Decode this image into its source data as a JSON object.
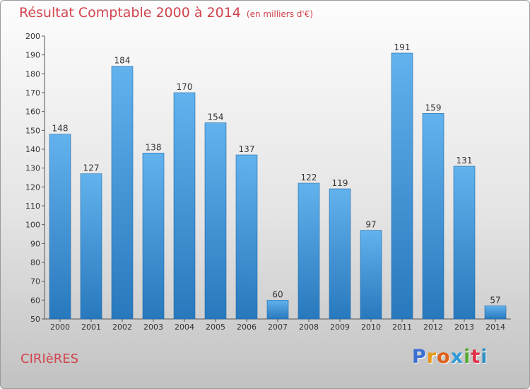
{
  "header": {
    "title": "Résultat Comptable 2000 à 2014",
    "subtitle": "(en milliers d'€)"
  },
  "footer": {
    "commune": "CIRIèRES",
    "logo_letters": [
      "P",
      "r",
      "o",
      "x",
      "i",
      "t",
      "i"
    ],
    "logo_colors": [
      "#3b6fd1",
      "#e89a1c",
      "#e0601a",
      "#2f9ad8",
      "#57a832",
      "#e0334a",
      "#2f8fc4"
    ]
  },
  "colors": {
    "bar_light": "#62b2ee",
    "bar_dark": "#2878bd",
    "title": "#d2444e"
  },
  "chart_data": {
    "type": "bar",
    "title": "Résultat Comptable 2000 à 2014",
    "xlabel": "",
    "ylabel": "",
    "categories": [
      "2000",
      "2001",
      "2002",
      "2003",
      "2004",
      "2005",
      "2006",
      "2007",
      "2008",
      "2009",
      "2010",
      "2011",
      "2012",
      "2013",
      "2014"
    ],
    "values": [
      148,
      127,
      184,
      138,
      170,
      154,
      137,
      60,
      122,
      119,
      97,
      191,
      159,
      131,
      57
    ],
    "ylim": [
      50,
      200
    ],
    "yticks": [
      50,
      60,
      70,
      80,
      90,
      100,
      110,
      120,
      130,
      140,
      150,
      160,
      170,
      180,
      190,
      200
    ],
    "grid": false,
    "legend": "none"
  }
}
